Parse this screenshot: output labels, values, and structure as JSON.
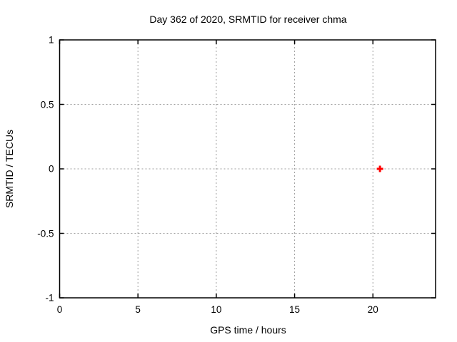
{
  "chart_data": {
    "type": "scatter",
    "title": "Day 362 of 2020, SRMTID for receiver chma",
    "xlabel": "GPS time / hours",
    "ylabel": "SRMTID / TECUs",
    "xlim": [
      0,
      24
    ],
    "ylim": [
      -1,
      1
    ],
    "x_ticks": [
      0,
      5,
      10,
      15,
      20
    ],
    "x_tick_labels": [
      "0",
      "5",
      "10",
      "15",
      "20"
    ],
    "y_ticks": [
      -1,
      -0.5,
      0,
      0.5,
      1
    ],
    "y_tick_labels": [
      "-1",
      "-0.5",
      "0",
      "0.5",
      "1"
    ],
    "grid": true,
    "legend": "none",
    "series": [
      {
        "name": "SRMTID",
        "marker": "plus",
        "color": "#ff0000",
        "points": [
          {
            "x": 20.45,
            "y": 0.0
          }
        ]
      }
    ],
    "colors": {
      "axis": "#000000",
      "grid": "#9e9e9e",
      "text": "#000000",
      "background": "#ffffff"
    }
  }
}
